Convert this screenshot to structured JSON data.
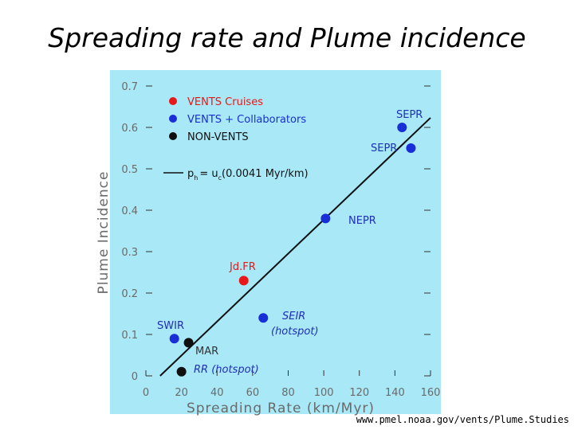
{
  "slide": {
    "title": "Spreading rate and Plume incidence",
    "source": "www.pmel.noaa.gov/vents/Plume.Studies"
  },
  "colors": {
    "plot_bg": "#a8e8f7",
    "vents_cruises": "#e81818",
    "vents_collaborators": "#1a2ed8",
    "non_vents": "#101010",
    "axis_text": "#6a6a6a",
    "series_label": "#1f2fb8"
  },
  "chart_data": {
    "type": "scatter",
    "title": "",
    "xlabel": "Spreading Rate (km/Myr)",
    "ylabel": "Plume Incidence",
    "xlim": [
      0,
      160
    ],
    "ylim": [
      0,
      0.7
    ],
    "xticks": [
      0,
      20,
      40,
      60,
      80,
      100,
      120,
      140,
      160
    ],
    "yticks": [
      0,
      0.1,
      0.2,
      0.3,
      0.4,
      0.5,
      0.6,
      0.7
    ],
    "xtick_labels": [
      "0",
      "20",
      "40",
      "60",
      "80",
      "100",
      "120",
      "140",
      "160"
    ],
    "ytick_labels": [
      "0",
      "0.1",
      "0.2",
      "0.3",
      "0.4",
      "0.5",
      "0.6",
      "0.7"
    ],
    "grid": false,
    "legend_position": "top-left",
    "series": [
      {
        "name": "VENTS Cruises",
        "color_key": "vents_cruises",
        "points": [
          {
            "label": "Jd.FR",
            "x": 55,
            "y": 0.23
          }
        ]
      },
      {
        "name": "VENTS + Collaborators",
        "color_key": "vents_collaborators",
        "points": [
          {
            "label": "SEPR",
            "x": 144,
            "y": 0.6
          },
          {
            "label": "SEPR",
            "x": 149,
            "y": 0.55
          },
          {
            "label": "NEPR",
            "x": 101,
            "y": 0.38
          },
          {
            "label": "SEIR",
            "sublabel": "(hotspot)",
            "x": 66,
            "y": 0.14
          },
          {
            "label": "SWIR",
            "x": 16,
            "y": 0.09
          }
        ]
      },
      {
        "name": "NON-VENTS",
        "color_key": "non_vents",
        "points": [
          {
            "label": "MAR",
            "x": 24,
            "y": 0.08
          },
          {
            "label": "RR (hotspot)",
            "x": 20,
            "y": 0.01
          }
        ]
      }
    ],
    "fit_line": {
      "legend_label": "p_h = u_c(0.0041 Myr/km)",
      "legend_p": "p",
      "legend_p_sub": "h",
      "legend_eq": "= u",
      "legend_u_sub": "c",
      "legend_rest": "(0.0041 Myr/km)",
      "x_start": 8,
      "x_end": 160,
      "y_start": 0.0,
      "y_end": 0.6232
    }
  }
}
